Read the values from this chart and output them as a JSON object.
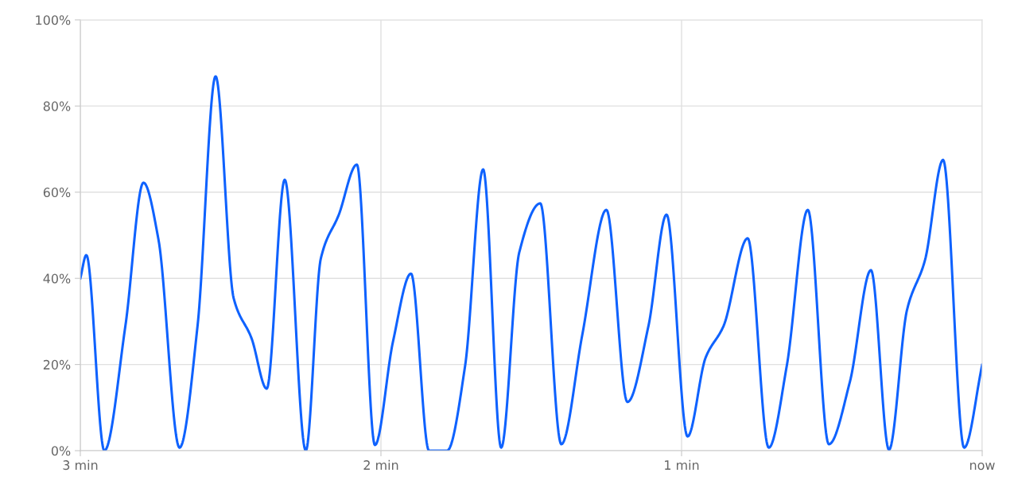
{
  "chart_data": {
    "type": "line",
    "xlim": [
      3,
      0
    ],
    "xticks": [
      {
        "value": 3,
        "label": "3 min"
      },
      {
        "value": 2,
        "label": "2 min"
      },
      {
        "value": 1,
        "label": "1 min"
      },
      {
        "value": 0,
        "label": "now"
      }
    ],
    "ylim": [
      0,
      100
    ],
    "yticks": [
      {
        "value": 0,
        "label": "0%"
      },
      {
        "value": 20,
        "label": "20%"
      },
      {
        "value": 40,
        "label": "40%"
      },
      {
        "value": 60,
        "label": "60%"
      },
      {
        "value": 80,
        "label": "80%"
      },
      {
        "value": 100,
        "label": "100%"
      }
    ],
    "grid": true,
    "marker": "none",
    "line_style": "solid",
    "series": [
      {
        "color": "#0f62fe",
        "x": [
          3.0,
          2.98,
          2.92,
          2.85,
          2.79,
          2.74,
          2.67,
          2.61,
          2.55,
          2.49,
          2.43,
          2.38,
          2.32,
          2.25,
          2.2,
          2.14,
          2.08,
          2.02,
          1.96,
          1.9,
          1.84,
          1.78,
          1.72,
          1.66,
          1.6,
          1.54,
          1.47,
          1.4,
          1.33,
          1.25,
          1.18,
          1.11,
          1.05,
          0.98,
          0.92,
          0.86,
          0.78,
          0.71,
          0.65,
          0.58,
          0.51,
          0.44,
          0.37,
          0.31,
          0.25,
          0.19,
          0.13,
          0.06,
          0
        ],
        "values": [
          40,
          45.4,
          0,
          29,
          62.2,
          49,
          0.7,
          29,
          86.9,
          35.4,
          26,
          14.4,
          62.9,
          0,
          44.6,
          54.8,
          66.4,
          1.3,
          25.3,
          41.1,
          0,
          0,
          19.7,
          65.3,
          0.7,
          46,
          57.4,
          1.5,
          27,
          55.9,
          11.3,
          29,
          54.8,
          3.3,
          21.6,
          29,
          49.3,
          0.7,
          19.7,
          55.9,
          1.5,
          16,
          41.9,
          0.2,
          32.7,
          44.3,
          67.5,
          0.7,
          19.9
        ]
      }
    ]
  }
}
